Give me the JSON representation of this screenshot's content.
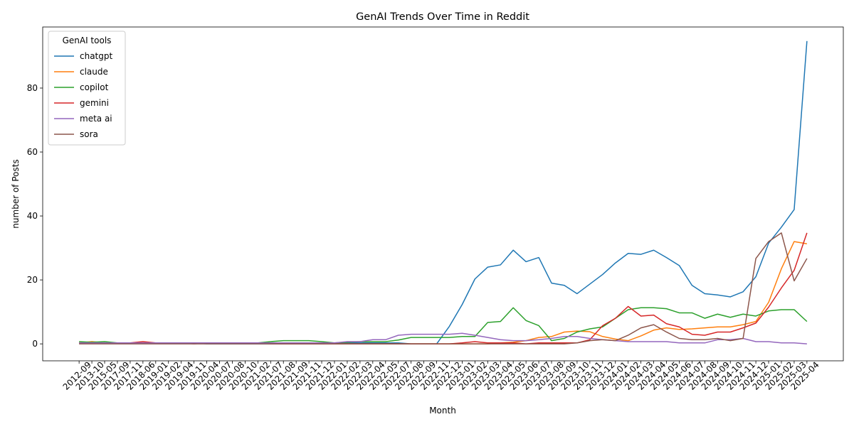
{
  "chart_data": {
    "type": "line",
    "title": "GenAI Trends Over Time in Reddit",
    "x_label": "Month",
    "y_label": "number of Posts",
    "legend_title": "GenAI tools",
    "legend_position": "upper left",
    "categories": [
      "2012-09",
      "2013-10",
      "2015-05",
      "2017-09",
      "2017-11",
      "2018-06",
      "2019-01",
      "2019-02",
      "2019-04",
      "2019-11",
      "2020-04",
      "2020-07",
      "2020-08",
      "2020-10",
      "2021-02",
      "2021-07",
      "2021-08",
      "2021-09",
      "2021-11",
      "2021-12",
      "2022-01",
      "2022-02",
      "2022-03",
      "2022-04",
      "2022-05",
      "2022-07",
      "2022-08",
      "2022-09",
      "2022-11",
      "2022-12",
      "2023-01",
      "2023-02",
      "2023-03",
      "2023-04",
      "2023-05",
      "2023-06",
      "2023-07",
      "2023-08",
      "2023-09",
      "2023-10",
      "2023-11",
      "2023-12",
      "2024-01",
      "2024-02",
      "2024-03",
      "2024-04",
      "2024-05",
      "2024-06",
      "2024-07",
      "2024-08",
      "2024-09",
      "2024-10",
      "2024-11",
      "2024-12",
      "2025-01",
      "2025-02",
      "2025-03",
      "2025-04"
    ],
    "ylim": [
      -5.3,
      99.1
    ],
    "yticks": [
      0,
      20,
      40,
      60,
      80
    ],
    "series": [
      {
        "name": "chatgpt",
        "color": "#1f77b4",
        "values": [
          0.3,
          0.3,
          0.3,
          0.3,
          0.3,
          0.3,
          0.3,
          0.3,
          0.3,
          0.3,
          0,
          0,
          0,
          0,
          0,
          0,
          0,
          0,
          0,
          0,
          0.3,
          0.3,
          0.3,
          0.3,
          0.3,
          0.3,
          0,
          0,
          0,
          5.5,
          12.3,
          20.3,
          24,
          24.7,
          29.3,
          25.7,
          27,
          19,
          18.3,
          15.7,
          18.7,
          21.7,
          25.3,
          28.3,
          28,
          29.3,
          27,
          24.5,
          18.3,
          15.7,
          15.3,
          14.7,
          16.3,
          21,
          31.5,
          36.5,
          42,
          94.7
        ]
      },
      {
        "name": "claude",
        "color": "#ff7f0e",
        "values": [
          0.3,
          0.7,
          0.3,
          0.3,
          0.3,
          0.3,
          0.3,
          0.3,
          0.3,
          0.3,
          0.3,
          0.3,
          0.3,
          0.3,
          0.3,
          0.3,
          0,
          0,
          0,
          0,
          0,
          0,
          0,
          0,
          0,
          0,
          0,
          0,
          0,
          0,
          0,
          0,
          0,
          0.3,
          0.5,
          1,
          2,
          2.3,
          3.7,
          4,
          3.8,
          2.3,
          1.5,
          1,
          2.5,
          4.3,
          5,
          4.5,
          4.7,
          5,
          5.3,
          5.3,
          6,
          7,
          13,
          23.5,
          32,
          31.3
        ]
      },
      {
        "name": "copilot",
        "color": "#2ca02c",
        "values": [
          0.7,
          0.5,
          0.7,
          0.3,
          0.3,
          0.3,
          0.3,
          0.3,
          0.3,
          0.3,
          0.3,
          0.3,
          0.3,
          0.3,
          0.3,
          0.7,
          1,
          1,
          1,
          0.7,
          0.3,
          0.5,
          0.7,
          0.7,
          0.7,
          1.2,
          2,
          2,
          2,
          2,
          2.3,
          2.3,
          6.7,
          7,
          11.3,
          7.3,
          5.7,
          1,
          1.7,
          3.7,
          4.7,
          5.3,
          8,
          10.7,
          11.3,
          11.3,
          11,
          9.7,
          9.7,
          8,
          9.3,
          8.3,
          9.3,
          8.7,
          10.3,
          10.7,
          10.7,
          7
        ]
      },
      {
        "name": "gemini",
        "color": "#d62728",
        "values": [
          0.3,
          0.3,
          0.3,
          0.3,
          0.3,
          0.7,
          0.3,
          0.3,
          0.3,
          0,
          0.3,
          0.3,
          0.3,
          0.3,
          0.3,
          0,
          0,
          0,
          0,
          0,
          0,
          0,
          0,
          0,
          0,
          0,
          0,
          0,
          0,
          0,
          0.3,
          0.7,
          0.3,
          0.3,
          0.3,
          0,
          0.3,
          0.3,
          0.3,
          0.3,
          1.3,
          5.7,
          8,
          11.7,
          8.7,
          9,
          6.3,
          5.3,
          3,
          2.7,
          3.7,
          3.7,
          5,
          6.5,
          11.5,
          17.5,
          23,
          34.7
        ]
      },
      {
        "name": "meta ai",
        "color": "#9467bd",
        "values": [
          0.3,
          0.3,
          0.3,
          0.3,
          0.3,
          0.3,
          0.3,
          0.3,
          0.3,
          0.3,
          0.3,
          0.3,
          0.3,
          0.3,
          0.3,
          0.3,
          0.3,
          0.3,
          0.3,
          0.3,
          0.3,
          0.7,
          0.7,
          1.3,
          1.3,
          2.7,
          3,
          3,
          3,
          3,
          3.3,
          2.7,
          2,
          1.3,
          1,
          1,
          1.3,
          1.7,
          2.3,
          2.3,
          1.7,
          1.3,
          1,
          0.7,
          0.7,
          0.7,
          0.7,
          0.3,
          0.3,
          0.3,
          1.3,
          1.3,
          1.7,
          0.7,
          0.7,
          0.3,
          0.3,
          0
        ]
      },
      {
        "name": "sora",
        "color": "#8c564b",
        "values": [
          0,
          0,
          0,
          0,
          0,
          0,
          0,
          0,
          0,
          0,
          0,
          0,
          0,
          0,
          0,
          0,
          0,
          0,
          0,
          0,
          0,
          0,
          0,
          0,
          0,
          0,
          0,
          0,
          0,
          0,
          0,
          0,
          0,
          0,
          0,
          0,
          0,
          0,
          0,
          0.3,
          1,
          1.3,
          1,
          2.7,
          5,
          6,
          3.7,
          1.7,
          1.3,
          1.3,
          1.7,
          1,
          1.7,
          26.7,
          32,
          34.7,
          19.7,
          26.7
        ]
      }
    ]
  }
}
